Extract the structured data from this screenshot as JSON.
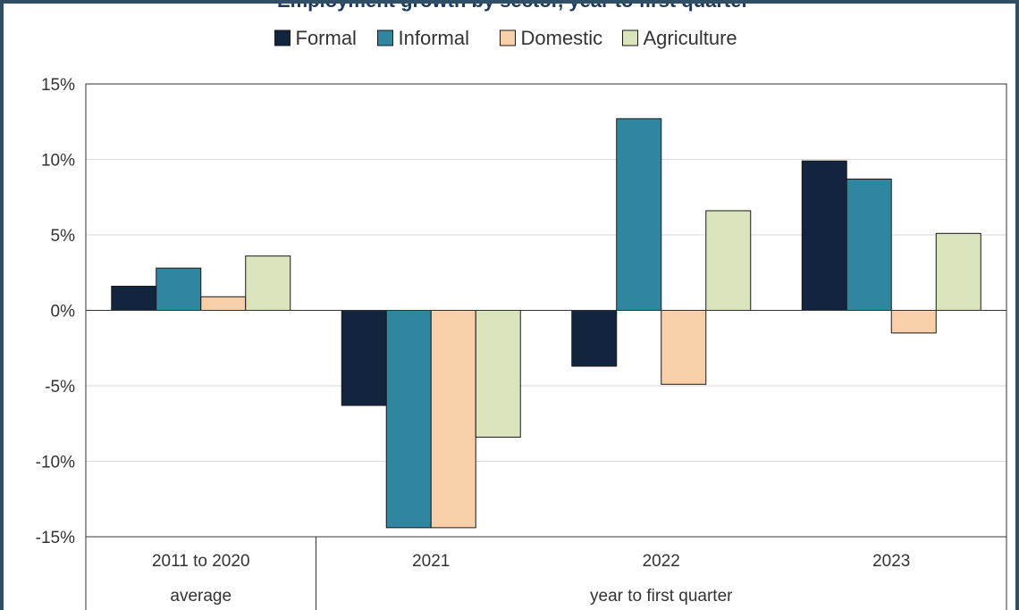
{
  "chart_data": {
    "type": "bar",
    "title": "Employment growth by sector, year to first quarter",
    "categories": [
      "2011 to 2020",
      "2021",
      "2022",
      "2023"
    ],
    "category_groups": [
      "average",
      "year to first quarter"
    ],
    "series": [
      {
        "name": "Formal",
        "color": "#13243f",
        "values": [
          1.6,
          -6.3,
          -3.7,
          9.9
        ]
      },
      {
        "name": "Informal",
        "color": "#2f869e",
        "values": [
          2.8,
          -14.4,
          12.7,
          8.7
        ]
      },
      {
        "name": "Domestic",
        "color": "#f9cfa9",
        "values": [
          0.9,
          -14.4,
          -4.9,
          -1.5
        ]
      },
      {
        "name": "Agriculture",
        "color": "#d9e4bd",
        "values": [
          3.6,
          -8.4,
          6.6,
          5.1
        ]
      }
    ],
    "ylim": [
      -15,
      15
    ],
    "yticks": [
      "15%",
      "10%",
      "5%",
      "0%",
      "-5%",
      "-10%",
      "-15%"
    ],
    "xlabel": "",
    "ylabel": "",
    "legend_position": "top",
    "grid": true
  }
}
